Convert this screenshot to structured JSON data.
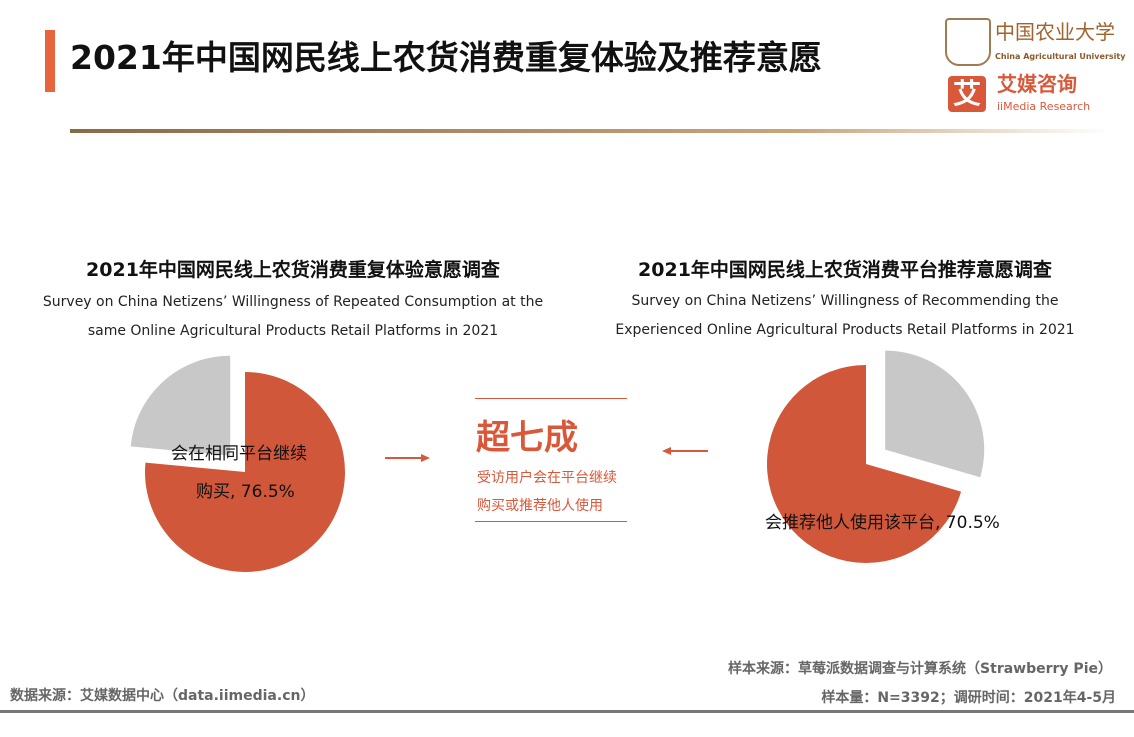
{
  "header": {
    "title": "2021年中国网民线上农货消费重复体验及推荐意愿"
  },
  "logos": {
    "cau_cn": "中国农业大学",
    "cau_en": "China Agricultural University",
    "iimedia_mark": "艾",
    "iimedia_cn": "艾媒咨询",
    "iimedia_en": "iiMedia Research"
  },
  "chart_data": [
    {
      "type": "pie",
      "title": "2021年中国网民线上农货消费重复体验意愿调查",
      "subtitle": "Survey on China Netizens’  Willingness of  Repeated Consumption at the same Online Agricultural Products Retail Platforms in 2021",
      "slices": [
        {
          "label": "会在相同平台继续购买",
          "value": 76.5,
          "color": "#d1573a",
          "data_label": "会在相同平台继续购买, 76.5%"
        },
        {
          "label": "",
          "value": 23.5,
          "color": "#c8c8c8"
        }
      ]
    },
    {
      "type": "pie",
      "title": "2021年中国网民线上农货消费平台推荐意愿调查",
      "subtitle": "Survey on China Netizens’  Willingness of Recommending the Experienced Online Agricultural Products Retail Platforms in 2021",
      "slices": [
        {
          "label": "会推荐他人使用该平台",
          "value": 70.5,
          "color": "#d1573a",
          "data_label": "会推荐他人使用该平台, 70.5%"
        },
        {
          "label": "",
          "value": 29.5,
          "color": "#c8c8c8"
        }
      ]
    }
  ],
  "labels": {
    "left_l1": "会在相同平台继续",
    "left_l2": "购买, 76.5%",
    "right": "会推荐他人使用该平台, 70.5%"
  },
  "center": {
    "big": "超七成",
    "line1": "受访用户会在平台继续",
    "line2": "购买或推荐他人使用"
  },
  "footer": {
    "source": "数据来源：艾媒数据中心（data.iimedia.cn）",
    "sample_source": "样本来源：草莓派数据调查与计算系统（Strawberry  Pie）",
    "sample_info": "样本量：N=3392；调研时间：2021年4-5月"
  }
}
